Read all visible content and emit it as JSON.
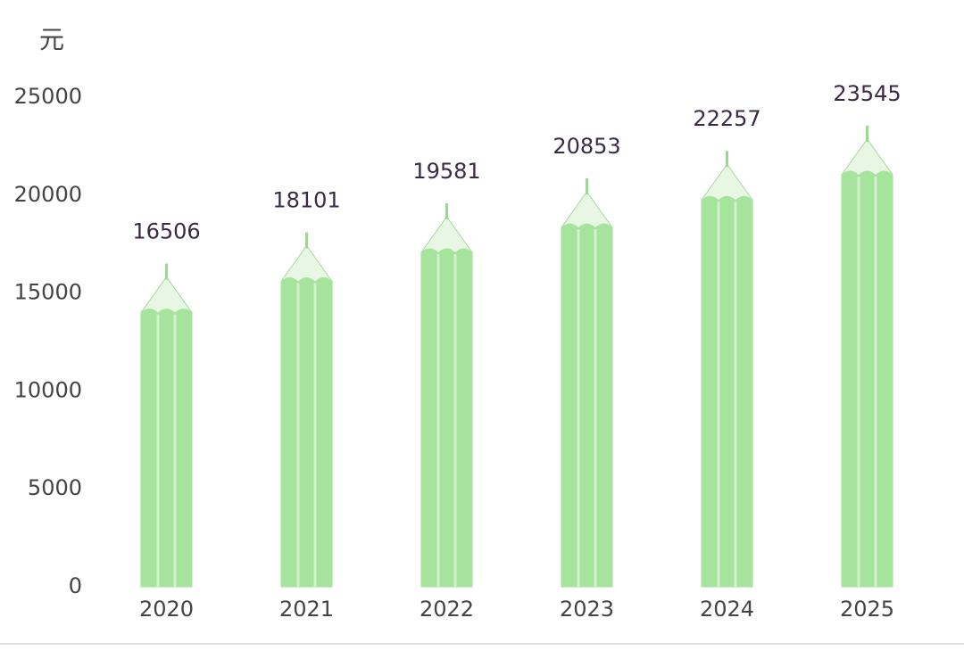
{
  "chart_data": {
    "type": "bar",
    "y_unit_label": "元",
    "categories": [
      "2020",
      "2021",
      "2022",
      "2023",
      "2024",
      "2025"
    ],
    "values": [
      16506,
      18101,
      19581,
      20853,
      22257,
      23545
    ],
    "color": "#a6e39c",
    "ylim": [
      0,
      25000
    ],
    "yticks": [
      0,
      5000,
      10000,
      15000,
      20000,
      25000
    ]
  }
}
